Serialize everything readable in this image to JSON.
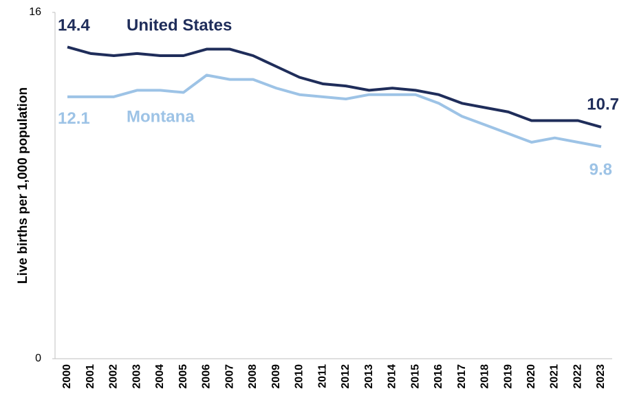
{
  "chart_data": {
    "type": "line",
    "y_label": "Live births per 1,000 population",
    "categories": [
      "2000",
      "2001",
      "2002",
      "2003",
      "2004",
      "2005",
      "2006",
      "2007",
      "2008",
      "2009",
      "2010",
      "2011",
      "2012",
      "2013",
      "2014",
      "2015",
      "2016",
      "2017",
      "2018",
      "2019",
      "2020",
      "2021",
      "2022",
      "2023"
    ],
    "series": [
      {
        "name": "United States",
        "color": "#1f2d5a",
        "values": [
          14.4,
          14.1,
          14.0,
          14.1,
          14.0,
          14.0,
          14.3,
          14.3,
          14.0,
          13.5,
          13.0,
          12.7,
          12.6,
          12.4,
          12.5,
          12.4,
          12.2,
          11.8,
          11.6,
          11.4,
          11.0,
          11.0,
          11.0,
          10.7
        ]
      },
      {
        "name": "Montana",
        "color": "#9dc3e6",
        "values": [
          12.1,
          12.1,
          12.1,
          12.4,
          12.4,
          12.3,
          13.1,
          12.9,
          12.9,
          12.5,
          12.2,
          12.1,
          12.0,
          12.2,
          12.2,
          12.2,
          11.8,
          11.2,
          10.8,
          10.4,
          10.0,
          10.2,
          10.0,
          9.8
        ]
      }
    ],
    "ylim": [
      0,
      16
    ],
    "yticks": [
      0,
      16
    ],
    "grid": false
  }
}
